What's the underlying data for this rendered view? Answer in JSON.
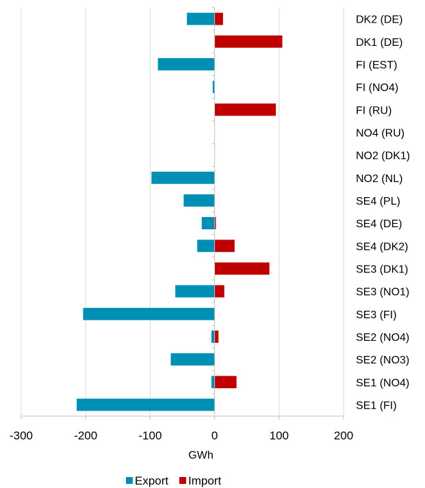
{
  "chart_data": {
    "type": "bar",
    "orientation": "horizontal",
    "stacked": "diverging",
    "categories": [
      "DK2 (DE)",
      "DK1 (DE)",
      "FI (EST)",
      "FI (NO4)",
      "FI (RU)",
      "NO4 (RU)",
      "NO2 (DK1)",
      "NO2 (NL)",
      "SE4 (PL)",
      "SE4 (DE)",
      "SE4 (DK2)",
      "SE3 (DK1)",
      "SE3 (NO1)",
      "SE3 (FI)",
      "SE2 (NO4)",
      "SE2 (NO3)",
      "SE1 (NO4)",
      "SE1 (FI)"
    ],
    "series": [
      {
        "name": "Export",
        "color": "#008fb4",
        "values": [
          -43,
          0,
          -88,
          -3,
          0,
          0,
          0,
          -98,
          -48,
          -20,
          -27,
          0,
          -61,
          -204,
          -5,
          -68,
          -5,
          -214
        ]
      },
      {
        "name": "Import",
        "color": "#c00000",
        "values": [
          13,
          105,
          0,
          0,
          95,
          0,
          0,
          0,
          0,
          2,
          31,
          85,
          15,
          0,
          6,
          0,
          34,
          0
        ]
      }
    ],
    "xlabel": "GWh",
    "ylabel": "",
    "xlim": [
      -300,
      200
    ],
    "xticks": [
      -300,
      -200,
      -100,
      0,
      100,
      200
    ],
    "grid": true,
    "legend_position": "bottom"
  }
}
